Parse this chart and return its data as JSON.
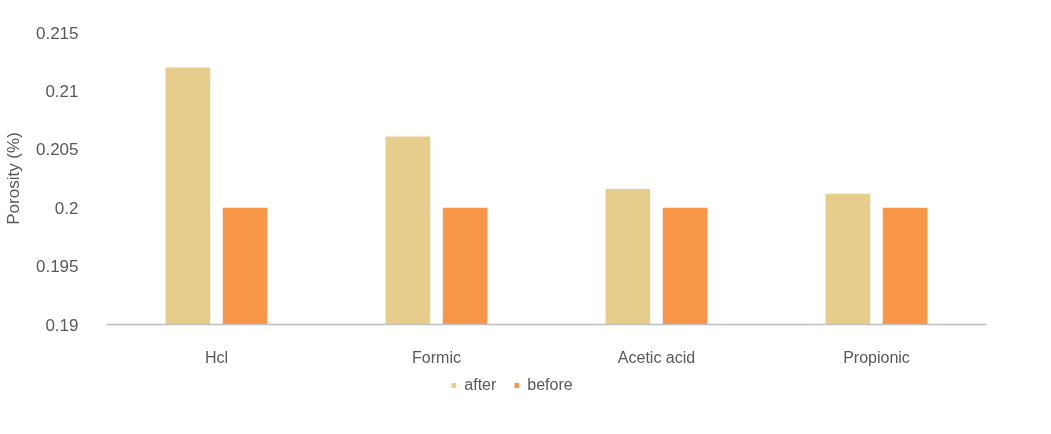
{
  "chart_data": {
    "type": "bar",
    "ylabel": "Porosity (%)",
    "categories": [
      "Hcl",
      "Formic",
      "Acetic acid",
      "Propionic"
    ],
    "series": [
      {
        "name": "after",
        "color": "#e6cd8c",
        "values": [
          0.212,
          0.2061,
          0.2016,
          0.2012
        ]
      },
      {
        "name": "before",
        "color": "#f79646",
        "values": [
          0.2,
          0.2,
          0.2,
          0.2
        ]
      }
    ],
    "ylim": [
      0.19,
      0.215
    ],
    "yticks": [
      0.19,
      0.195,
      0.2,
      0.205,
      0.21,
      0.215
    ],
    "grid": false,
    "legend": "bottom"
  }
}
